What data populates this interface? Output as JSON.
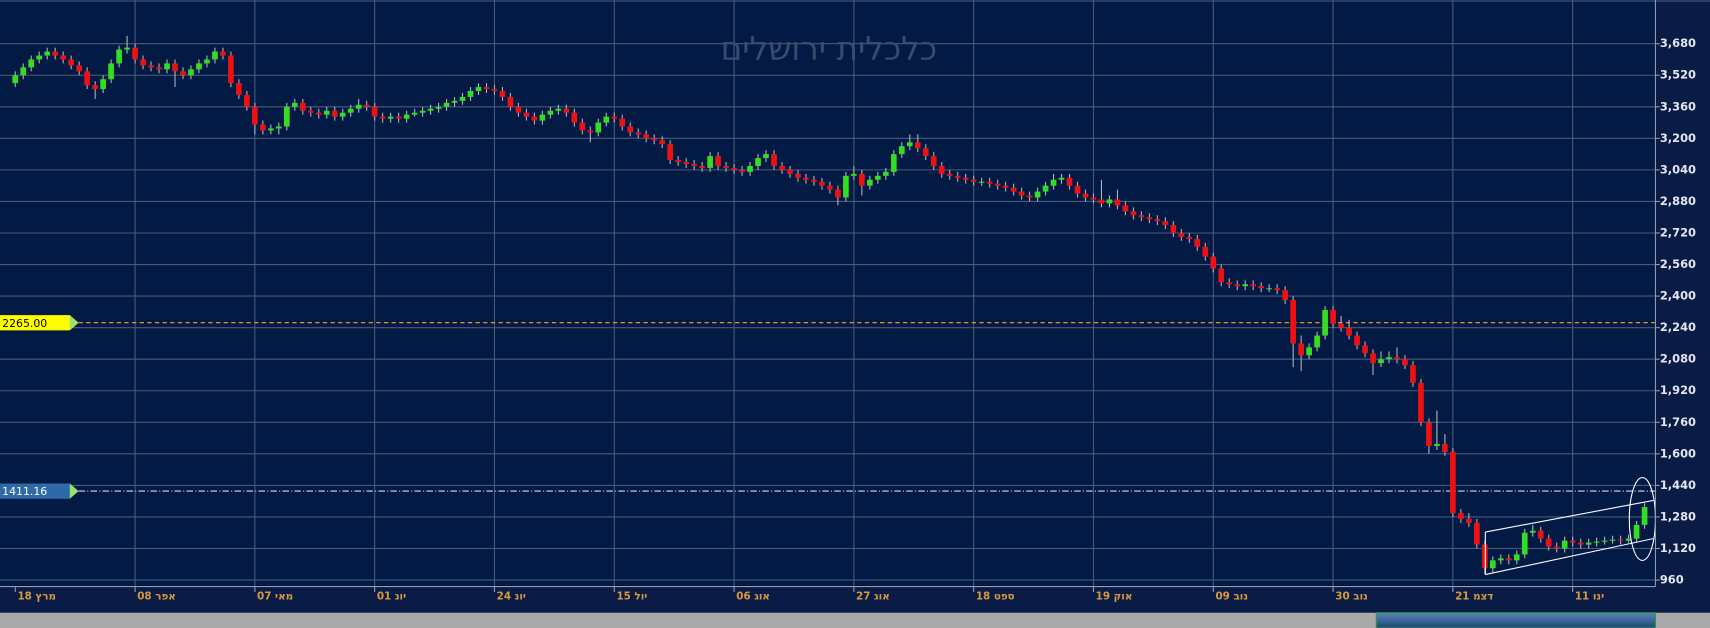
{
  "chart_data": {
    "type": "candlestick",
    "title": "כלכלית ירושלים",
    "categories": [
      "18 מרץ",
      null,
      null,
      null,
      null,
      null,
      null,
      null,
      null,
      null,
      null,
      null,
      null,
      null,
      null,
      "08 אפר",
      null,
      null,
      null,
      null,
      null,
      null,
      null,
      null,
      null,
      null,
      null,
      null,
      null,
      null,
      "07 מאי",
      null,
      null,
      null,
      null,
      null,
      null,
      null,
      null,
      null,
      null,
      null,
      null,
      null,
      null,
      "01 יונ",
      null,
      null,
      null,
      null,
      null,
      null,
      null,
      null,
      null,
      null,
      null,
      null,
      null,
      null,
      "24 יונ",
      null,
      null,
      null,
      null,
      null,
      null,
      null,
      null,
      null,
      null,
      null,
      null,
      null,
      null,
      "15 יול",
      null,
      null,
      null,
      null,
      null,
      null,
      null,
      null,
      null,
      null,
      null,
      null,
      null,
      null,
      "06 אוג",
      null,
      null,
      null,
      null,
      null,
      null,
      null,
      null,
      null,
      null,
      null,
      null,
      null,
      null,
      "27 אוג",
      null,
      null,
      null,
      null,
      null,
      null,
      null,
      null,
      null,
      null,
      null,
      null,
      null,
      null,
      "18 ספט",
      null,
      null,
      null,
      null,
      null,
      null,
      null,
      null,
      null,
      null,
      null,
      null,
      null,
      null,
      "19 אוק",
      null,
      null,
      null,
      null,
      null,
      null,
      null,
      null,
      null,
      null,
      null,
      null,
      null,
      null,
      "09 נוב",
      null,
      null,
      null,
      null,
      null,
      null,
      null,
      null,
      null,
      null,
      null,
      null,
      null,
      null,
      "30 נוב",
      null,
      null,
      null,
      null,
      null,
      null,
      null,
      null,
      null,
      null,
      null,
      null,
      null,
      null,
      "21 דצמ",
      null,
      null,
      null,
      null,
      null,
      null,
      null,
      null,
      null,
      null,
      null,
      null,
      null,
      null,
      "11 ינו",
      null,
      null,
      null,
      null,
      null,
      null,
      null,
      null,
      null
    ],
    "ohlc": [
      [
        3480,
        3540,
        3460,
        3520
      ],
      [
        3520,
        3580,
        3500,
        3560
      ],
      [
        3560,
        3620,
        3540,
        3600
      ],
      [
        3600,
        3640,
        3580,
        3620
      ],
      [
        3620,
        3660,
        3600,
        3640
      ],
      [
        3640,
        3660,
        3600,
        3620
      ],
      [
        3620,
        3640,
        3580,
        3600
      ],
      [
        3600,
        3620,
        3550,
        3570
      ],
      [
        3570,
        3590,
        3520,
        3540
      ],
      [
        3540,
        3560,
        3450,
        3470
      ],
      [
        3470,
        3490,
        3400,
        3450
      ],
      [
        3450,
        3520,
        3430,
        3500
      ],
      [
        3500,
        3600,
        3480,
        3580
      ],
      [
        3580,
        3670,
        3560,
        3650
      ],
      [
        3650,
        3720,
        3630,
        3660
      ],
      [
        3660,
        3680,
        3580,
        3600
      ],
      [
        3600,
        3620,
        3550,
        3570
      ],
      [
        3570,
        3590,
        3540,
        3560
      ],
      [
        3560,
        3580,
        3530,
        3550
      ],
      [
        3550,
        3600,
        3530,
        3580
      ],
      [
        3580,
        3600,
        3460,
        3540
      ],
      [
        3540,
        3560,
        3500,
        3520
      ],
      [
        3520,
        3570,
        3500,
        3550
      ],
      [
        3550,
        3600,
        3530,
        3580
      ],
      [
        3580,
        3620,
        3560,
        3600
      ],
      [
        3600,
        3660,
        3580,
        3640
      ],
      [
        3640,
        3660,
        3600,
        3620
      ],
      [
        3620,
        3640,
        3460,
        3480
      ],
      [
        3480,
        3500,
        3400,
        3420
      ],
      [
        3420,
        3440,
        3340,
        3360
      ],
      [
        3360,
        3380,
        3220,
        3270
      ],
      [
        3270,
        3290,
        3220,
        3240
      ],
      [
        3240,
        3270,
        3220,
        3250
      ],
      [
        3250,
        3280,
        3220,
        3260
      ],
      [
        3260,
        3380,
        3240,
        3360
      ],
      [
        3360,
        3400,
        3340,
        3380
      ],
      [
        3380,
        3400,
        3320,
        3340
      ],
      [
        3340,
        3360,
        3310,
        3330
      ],
      [
        3330,
        3350,
        3300,
        3320
      ],
      [
        3320,
        3360,
        3300,
        3340
      ],
      [
        3340,
        3360,
        3290,
        3310
      ],
      [
        3310,
        3350,
        3290,
        3330
      ],
      [
        3330,
        3370,
        3310,
        3350
      ],
      [
        3350,
        3400,
        3330,
        3370
      ],
      [
        3370,
        3390,
        3340,
        3360
      ],
      [
        3360,
        3380,
        3290,
        3310
      ],
      [
        3310,
        3330,
        3280,
        3300
      ],
      [
        3300,
        3330,
        3280,
        3310
      ],
      [
        3310,
        3330,
        3280,
        3300
      ],
      [
        3300,
        3340,
        3280,
        3320
      ],
      [
        3320,
        3350,
        3310,
        3330
      ],
      [
        3330,
        3360,
        3310,
        3340
      ],
      [
        3340,
        3370,
        3320,
        3350
      ],
      [
        3350,
        3380,
        3330,
        3360
      ],
      [
        3360,
        3400,
        3340,
        3380
      ],
      [
        3380,
        3410,
        3360,
        3390
      ],
      [
        3390,
        3430,
        3370,
        3410
      ],
      [
        3410,
        3460,
        3390,
        3440
      ],
      [
        3440,
        3480,
        3420,
        3460
      ],
      [
        3460,
        3480,
        3430,
        3450
      ],
      [
        3450,
        3470,
        3420,
        3440
      ],
      [
        3440,
        3460,
        3390,
        3410
      ],
      [
        3410,
        3430,
        3340,
        3360
      ],
      [
        3360,
        3380,
        3310,
        3330
      ],
      [
        3330,
        3350,
        3290,
        3310
      ],
      [
        3310,
        3330,
        3270,
        3290
      ],
      [
        3290,
        3340,
        3270,
        3320
      ],
      [
        3320,
        3360,
        3300,
        3340
      ],
      [
        3340,
        3370,
        3320,
        3350
      ],
      [
        3350,
        3370,
        3310,
        3330
      ],
      [
        3330,
        3350,
        3260,
        3280
      ],
      [
        3280,
        3300,
        3220,
        3240
      ],
      [
        3240,
        3260,
        3180,
        3230
      ],
      [
        3230,
        3300,
        3210,
        3280
      ],
      [
        3280,
        3330,
        3260,
        3310
      ],
      [
        3310,
        3330,
        3280,
        3300
      ],
      [
        3300,
        3320,
        3240,
        3260
      ],
      [
        3260,
        3280,
        3210,
        3230
      ],
      [
        3230,
        3250,
        3200,
        3220
      ],
      [
        3220,
        3240,
        3180,
        3200
      ],
      [
        3200,
        3220,
        3170,
        3190
      ],
      [
        3190,
        3210,
        3150,
        3170
      ],
      [
        3170,
        3190,
        3070,
        3090
      ],
      [
        3090,
        3110,
        3060,
        3080
      ],
      [
        3080,
        3100,
        3050,
        3070
      ],
      [
        3070,
        3090,
        3040,
        3060
      ],
      [
        3060,
        3080,
        3030,
        3050
      ],
      [
        3050,
        3130,
        3030,
        3110
      ],
      [
        3110,
        3130,
        3040,
        3060
      ],
      [
        3060,
        3080,
        3030,
        3050
      ],
      [
        3050,
        3070,
        3020,
        3040
      ],
      [
        3040,
        3060,
        3010,
        3030
      ],
      [
        3030,
        3080,
        3010,
        3060
      ],
      [
        3060,
        3120,
        3040,
        3100
      ],
      [
        3100,
        3140,
        3080,
        3120
      ],
      [
        3120,
        3140,
        3040,
        3060
      ],
      [
        3060,
        3080,
        3020,
        3040
      ],
      [
        3040,
        3060,
        3000,
        3020
      ],
      [
        3020,
        3040,
        2980,
        3000
      ],
      [
        3000,
        3020,
        2970,
        2990
      ],
      [
        2990,
        3010,
        2960,
        2980
      ],
      [
        2980,
        3000,
        2940,
        2960
      ],
      [
        2960,
        2980,
        2920,
        2940
      ],
      [
        2940,
        2960,
        2860,
        2900
      ],
      [
        2900,
        3030,
        2880,
        3010
      ],
      [
        3010,
        3060,
        2990,
        3020
      ],
      [
        3020,
        3040,
        2910,
        2960
      ],
      [
        2960,
        3010,
        2940,
        2990
      ],
      [
        2990,
        3030,
        2970,
        3010
      ],
      [
        3010,
        3050,
        2990,
        3030
      ],
      [
        3030,
        3140,
        3010,
        3120
      ],
      [
        3120,
        3180,
        3100,
        3160
      ],
      [
        3160,
        3220,
        3140,
        3180
      ],
      [
        3180,
        3220,
        3130,
        3150
      ],
      [
        3150,
        3170,
        3090,
        3110
      ],
      [
        3110,
        3130,
        3040,
        3060
      ],
      [
        3060,
        3080,
        3000,
        3020
      ],
      [
        3020,
        3040,
        2990,
        3010
      ],
      [
        3010,
        3030,
        2980,
        3000
      ],
      [
        3000,
        3020,
        2970,
        2990
      ],
      [
        2990,
        3010,
        2960,
        2980
      ],
      [
        2980,
        3000,
        2960,
        2980
      ],
      [
        2980,
        3000,
        2950,
        2970
      ],
      [
        2970,
        2990,
        2940,
        2960
      ],
      [
        2960,
        2980,
        2930,
        2950
      ],
      [
        2950,
        2970,
        2910,
        2930
      ],
      [
        2930,
        2950,
        2890,
        2910
      ],
      [
        2910,
        2930,
        2880,
        2900
      ],
      [
        2900,
        2950,
        2880,
        2930
      ],
      [
        2930,
        2980,
        2910,
        2960
      ],
      [
        2960,
        3020,
        2940,
        2990
      ],
      [
        2990,
        3020,
        2970,
        3000
      ],
      [
        3000,
        3020,
        2940,
        2960
      ],
      [
        2960,
        2980,
        2900,
        2920
      ],
      [
        2920,
        2940,
        2880,
        2900
      ],
      [
        2900,
        2920,
        2870,
        2890
      ],
      [
        2890,
        2990,
        2850,
        2870
      ],
      [
        2870,
        2910,
        2850,
        2890
      ],
      [
        2890,
        2940,
        2840,
        2860
      ],
      [
        2860,
        2880,
        2810,
        2830
      ],
      [
        2830,
        2850,
        2790,
        2810
      ],
      [
        2810,
        2830,
        2780,
        2800
      ],
      [
        2800,
        2820,
        2770,
        2790
      ],
      [
        2790,
        2810,
        2760,
        2780
      ],
      [
        2780,
        2800,
        2740,
        2760
      ],
      [
        2760,
        2780,
        2700,
        2720
      ],
      [
        2720,
        2740,
        2680,
        2700
      ],
      [
        2700,
        2720,
        2670,
        2690
      ],
      [
        2690,
        2710,
        2630,
        2650
      ],
      [
        2650,
        2670,
        2580,
        2600
      ],
      [
        2600,
        2620,
        2520,
        2540
      ],
      [
        2540,
        2560,
        2450,
        2470
      ],
      [
        2470,
        2490,
        2440,
        2460
      ],
      [
        2460,
        2480,
        2430,
        2450
      ],
      [
        2450,
        2480,
        2430,
        2460
      ],
      [
        2460,
        2480,
        2430,
        2450
      ],
      [
        2450,
        2470,
        2420,
        2440
      ],
      [
        2440,
        2460,
        2420,
        2440
      ],
      [
        2440,
        2460,
        2410,
        2430
      ],
      [
        2430,
        2450,
        2360,
        2380
      ],
      [
        2380,
        2400,
        2040,
        2160
      ],
      [
        2160,
        2200,
        2020,
        2100
      ],
      [
        2100,
        2160,
        2080,
        2140
      ],
      [
        2140,
        2220,
        2120,
        2200
      ],
      [
        2200,
        2350,
        2180,
        2330
      ],
      [
        2330,
        2350,
        2240,
        2260
      ],
      [
        2260,
        2300,
        2220,
        2240
      ],
      [
        2240,
        2280,
        2180,
        2200
      ],
      [
        2200,
        2220,
        2130,
        2150
      ],
      [
        2150,
        2170,
        2090,
        2110
      ],
      [
        2110,
        2130,
        2000,
        2060
      ],
      [
        2060,
        2120,
        2040,
        2080
      ],
      [
        2080,
        2120,
        2060,
        2090
      ],
      [
        2090,
        2140,
        2060,
        2080
      ],
      [
        2080,
        2100,
        2030,
        2050
      ],
      [
        2050,
        2070,
        1940,
        1960
      ],
      [
        1960,
        1980,
        1740,
        1760
      ],
      [
        1760,
        1780,
        1600,
        1640
      ],
      [
        1640,
        1820,
        1620,
        1650
      ],
      [
        1650,
        1700,
        1590,
        1610
      ],
      [
        1610,
        1630,
        1280,
        1300
      ],
      [
        1300,
        1320,
        1250,
        1270
      ],
      [
        1270,
        1300,
        1230,
        1250
      ],
      [
        1250,
        1270,
        1120,
        1140
      ],
      [
        1140,
        1160,
        990,
        1020
      ],
      [
        1020,
        1080,
        1000,
        1060
      ],
      [
        1060,
        1090,
        1040,
        1070
      ],
      [
        1070,
        1090,
        1040,
        1060
      ],
      [
        1060,
        1110,
        1040,
        1090
      ],
      [
        1090,
        1220,
        1070,
        1200
      ],
      [
        1200,
        1240,
        1180,
        1210
      ],
      [
        1210,
        1230,
        1150,
        1170
      ],
      [
        1170,
        1190,
        1110,
        1130
      ],
      [
        1130,
        1150,
        1100,
        1120
      ],
      [
        1120,
        1180,
        1100,
        1160
      ],
      [
        1160,
        1180,
        1130,
        1150
      ],
      [
        1150,
        1170,
        1120,
        1140
      ],
      [
        1140,
        1170,
        1120,
        1150
      ],
      [
        1150,
        1175,
        1130,
        1155
      ],
      [
        1155,
        1180,
        1140,
        1160
      ],
      [
        1160,
        1185,
        1145,
        1165
      ],
      [
        1165,
        1185,
        1140,
        1160
      ],
      [
        1160,
        1190,
        1150,
        1170
      ],
      [
        1170,
        1260,
        1150,
        1240
      ],
      [
        1240,
        1350,
        1220,
        1330
      ]
    ],
    "up_color": "#33dd22",
    "down_color": "#ee1111",
    "wick_color": "#b0b4bc",
    "ylim": [
      927,
      3802
    ],
    "yticks": [
      960,
      {
        "value": 1120,
        "label": "1,120"
      },
      {
        "value": 1280,
        "label": "1,280"
      },
      {
        "value": 1440,
        "label": "1,440"
      },
      {
        "value": 1600,
        "label": "1,600"
      },
      {
        "value": 1760,
        "label": "1,760"
      },
      {
        "value": 1920,
        "label": "1,920"
      },
      {
        "value": 2080,
        "label": "2,080"
      },
      {
        "value": 2240,
        "label": "2,240"
      },
      {
        "value": 2400,
        "label": "2,400"
      },
      {
        "value": 2560,
        "label": "2,560"
      },
      {
        "value": 2720,
        "label": "2,720"
      },
      {
        "value": 2880,
        "label": "2,880"
      },
      {
        "value": 3040,
        "label": "3,040"
      },
      {
        "value": 3200,
        "label": "3,200"
      },
      {
        "value": 3360,
        "label": "3,360"
      },
      {
        "value": 3520,
        "label": "3,520"
      },
      {
        "value": 3680,
        "label": "3,680"
      }
    ],
    "grid": true,
    "levels": [
      {
        "value": 2265,
        "label": "2265.00",
        "color": "#ffff00",
        "line_color": "#ffa020"
      },
      {
        "value": 1411.16,
        "label": "1411.16",
        "color": "#2f6aa8",
        "line_color": "#d8dce6"
      }
    ]
  }
}
